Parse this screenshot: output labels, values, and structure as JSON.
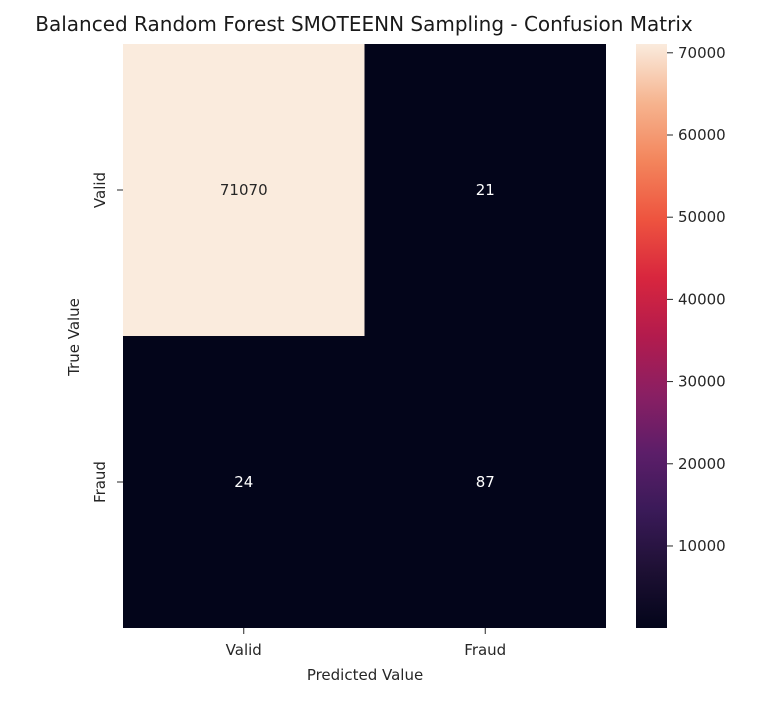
{
  "chart_data": {
    "type": "heatmap",
    "title": "Balanced Random Forest SMOTEENN Sampling - Confusion Matrix",
    "xlabel": "Predicted Value",
    "ylabel": "True Value",
    "x_categories": [
      "Valid",
      "Fraud"
    ],
    "y_categories": [
      "Valid",
      "Fraud"
    ],
    "values": [
      [
        71070,
        21
      ],
      [
        24,
        87
      ]
    ],
    "colorbar": {
      "range": [
        21,
        71070
      ],
      "ticks": [
        10000,
        20000,
        30000,
        40000,
        50000,
        60000,
        70000
      ],
      "tick_labels": [
        "10000",
        "20000",
        "30000",
        "40000",
        "50000",
        "60000",
        "70000"
      ],
      "colormap": "rocket"
    },
    "annotation_colors": {
      "light": "#ffffff",
      "dark": "#262626"
    }
  }
}
